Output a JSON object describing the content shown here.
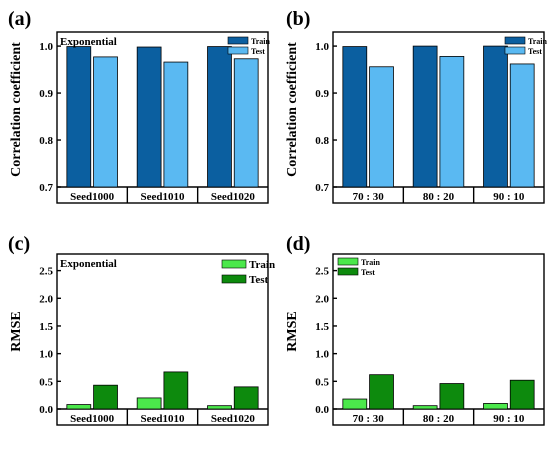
{
  "colors": {
    "train_corr": "#0b5fa0",
    "test_corr": "#5ab9f2",
    "train_rmse": "#4be84b",
    "test_rmse": "#0d8a0d"
  },
  "chart_data": [
    {
      "panel": "(a)",
      "type": "bar",
      "annotation": "Exponential",
      "ylabel": "Correlation coefficient",
      "xlabel": "",
      "ylim": [
        0.7,
        1.03
      ],
      "yticks": [
        "0.7",
        "0.8",
        "0.9",
        "1.0"
      ],
      "categories": [
        "Seed1000",
        "Seed1010",
        "Seed1020"
      ],
      "series": [
        {
          "name": "Train",
          "values": [
            0.999,
            0.998,
            0.999
          ]
        },
        {
          "name": "Test",
          "values": [
            0.977,
            0.966,
            0.973
          ]
        }
      ],
      "legend": "top-right",
      "grid": false
    },
    {
      "panel": "(b)",
      "type": "bar",
      "annotation": "",
      "ylabel": "Correlation coefficient",
      "xlabel": "",
      "ylim": [
        0.7,
        1.03
      ],
      "yticks": [
        "0.7",
        "0.8",
        "0.9",
        "1.0"
      ],
      "categories": [
        "70 : 30",
        "80 : 20",
        "90 : 10"
      ],
      "series": [
        {
          "name": "Train",
          "values": [
            0.999,
            1.0,
            1.0
          ]
        },
        {
          "name": "Test",
          "values": [
            0.956,
            0.978,
            0.962
          ]
        }
      ],
      "legend": "top-right",
      "grid": false
    },
    {
      "panel": "(c)",
      "type": "bar",
      "annotation": "Exponential",
      "ylabel": "RMSE",
      "xlabel": "",
      "ylim": [
        0,
        2.8
      ],
      "yticks": [
        "0.0",
        "0.5",
        "1.0",
        "1.5",
        "2.0",
        "2.5"
      ],
      "categories": [
        "Seed1000",
        "Seed1010",
        "Seed1020"
      ],
      "series": [
        {
          "name": "Train",
          "values": [
            0.08,
            0.2,
            0.06
          ]
        },
        {
          "name": "Test",
          "values": [
            0.43,
            0.67,
            0.4
          ]
        }
      ],
      "legend": "top-right",
      "grid": false
    },
    {
      "panel": "(d)",
      "type": "bar",
      "annotation": "",
      "ylabel": "RMSE",
      "xlabel": "",
      "ylim": [
        0,
        2.8
      ],
      "yticks": [
        "0.0",
        "0.5",
        "1.0",
        "1.5",
        "2.0",
        "2.5"
      ],
      "categories": [
        "70 : 30",
        "80 : 20",
        "90 : 10"
      ],
      "series": [
        {
          "name": "Train",
          "values": [
            0.18,
            0.06,
            0.1
          ]
        },
        {
          "name": "Test",
          "values": [
            0.62,
            0.46,
            0.52
          ]
        }
      ],
      "legend": "top-left",
      "grid": false
    }
  ]
}
